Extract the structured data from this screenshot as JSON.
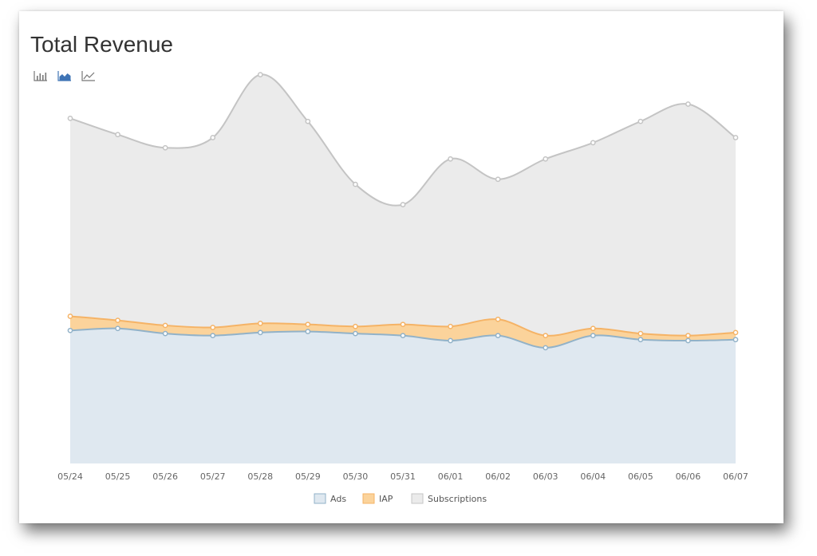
{
  "header": {
    "title": "Total Revenue",
    "toolbar": [
      {
        "icon": "bar-chart-icon",
        "active": false
      },
      {
        "icon": "area-chart-icon",
        "active": true
      },
      {
        "icon": "line-chart-icon",
        "active": false
      }
    ]
  },
  "colors": {
    "ads_fill": "#dfe8f0",
    "ads_line": "#92b2c8",
    "iap_fill": "#fbd39b",
    "iap_line": "#f5b366",
    "subs_fill": "#ebebeb",
    "subs_line": "#c4c4c4",
    "toolbar_active": "#3f74b5",
    "toolbar_inactive": "#777777"
  },
  "chart_data": {
    "type": "area",
    "stacked": true,
    "categories": [
      "05/24",
      "05/25",
      "05/26",
      "05/27",
      "05/28",
      "05/29",
      "05/30",
      "05/31",
      "06/01",
      "06/02",
      "06/03",
      "06/04",
      "06/05",
      "06/06",
      "06/07"
    ],
    "series": [
      {
        "name": "Ads",
        "values": [
          131,
          133,
          128,
          126,
          129,
          130,
          128,
          126,
          121,
          126,
          114,
          126,
          122,
          121,
          122
        ]
      },
      {
        "name": "IAP",
        "values": [
          14,
          8,
          8,
          8,
          9,
          7,
          7,
          11,
          14,
          16,
          12,
          7,
          6,
          5,
          7
        ]
      },
      {
        "name": "Subscriptions",
        "values": [
          195,
          183,
          175,
          187,
          245,
          200,
          140,
          118,
          165,
          138,
          174,
          183,
          209,
          228,
          192
        ]
      }
    ],
    "ylim": [
      0,
      400
    ],
    "grid": false,
    "legend": "bottom-center"
  }
}
